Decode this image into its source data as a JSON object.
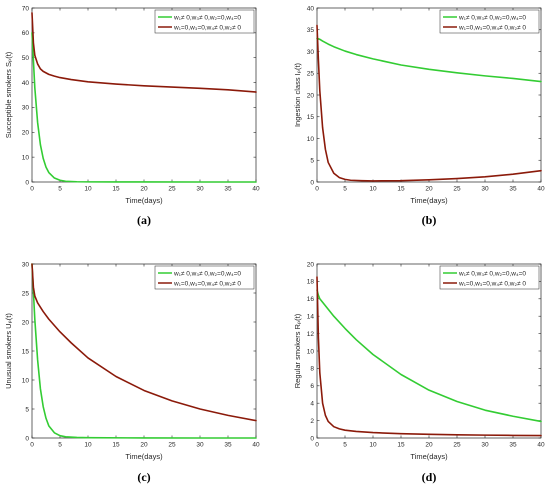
{
  "legend_common": {
    "s1": "w₁≠ 0,w₃≠ 0,w₂=0,w₄=0",
    "s2": "w₁=0,w₃=0,w₄≠ 0,w₂≠ 0"
  },
  "colors": {
    "series1": "#33cc33",
    "series2": "#8b1a0a",
    "axis": "#262626"
  },
  "chart_data": [
    {
      "id": "a",
      "type": "line",
      "caption": "(a)",
      "xlabel": "Time(days)",
      "ylabel": "Succeptible smokers Sₚ(t)",
      "xlim": [
        0,
        40
      ],
      "ylim": [
        0,
        70
      ],
      "xticks": [
        0,
        5,
        10,
        15,
        20,
        25,
        30,
        35,
        40
      ],
      "yticks": [
        0,
        10,
        20,
        30,
        40,
        50,
        60,
        70
      ],
      "legend_position": "top-right",
      "series": [
        {
          "name": "w₁≠ 0,w₃≠ 0,w₂=0,w₄=0",
          "color": "#33cc33",
          "x": [
            0,
            0.5,
            1,
            1.5,
            2,
            2.5,
            3,
            4,
            5,
            6,
            8,
            10,
            15,
            20,
            30,
            40
          ],
          "y": [
            60,
            38,
            24,
            15,
            9.5,
            6,
            3.8,
            1.6,
            0.7,
            0.3,
            0.1,
            0.05,
            0.02,
            0.01,
            0,
            0
          ]
        },
        {
          "name": "w₁=0,w₃=0,w₄≠ 0,w₂≠ 0",
          "color": "#8b1a0a",
          "x": [
            0,
            0.25,
            0.5,
            1,
            1.5,
            2,
            3,
            4,
            5,
            7,
            10,
            15,
            20,
            25,
            30,
            35,
            40
          ],
          "y": [
            68,
            56,
            51,
            47.5,
            45.5,
            44.5,
            43.3,
            42.6,
            42,
            41.2,
            40.3,
            39.4,
            38.7,
            38.2,
            37.7,
            37.1,
            36.2
          ]
        }
      ]
    },
    {
      "id": "b",
      "type": "line",
      "caption": "(b)",
      "xlabel": "Time(days)",
      "ylabel": "Ingestion class Iₚ(t)",
      "xlim": [
        0,
        40
      ],
      "ylim": [
        0,
        40
      ],
      "xticks": [
        0,
        5,
        10,
        15,
        20,
        25,
        30,
        35,
        40
      ],
      "yticks": [
        0,
        5,
        10,
        15,
        20,
        25,
        30,
        35,
        40
      ],
      "legend_position": "top-right",
      "series": [
        {
          "name": "w₁≠ 0,w₃≠ 0,w₂=0,w₄=0",
          "color": "#33cc33",
          "x": [
            0,
            0.5,
            1,
            2,
            3,
            5,
            7,
            10,
            15,
            20,
            25,
            30,
            35,
            40
          ],
          "y": [
            33,
            32.8,
            32.4,
            31.7,
            31.1,
            30.1,
            29.3,
            28.3,
            26.9,
            25.9,
            25.1,
            24.4,
            23.8,
            23.1
          ]
        },
        {
          "name": "w₁=0,w₃=0,w₄≠ 0,w₂≠ 0",
          "color": "#8b1a0a",
          "x": [
            0,
            0.25,
            0.5,
            1,
            1.5,
            2,
            3,
            4,
            5,
            6,
            8,
            10,
            15,
            20,
            25,
            30,
            35,
            40
          ],
          "y": [
            36,
            28,
            21,
            12.5,
            7.5,
            4.5,
            2,
            1,
            0.6,
            0.4,
            0.3,
            0.25,
            0.3,
            0.5,
            0.8,
            1.2,
            1.8,
            2.6
          ]
        }
      ]
    },
    {
      "id": "c",
      "type": "line",
      "caption": "(c)",
      "xlabel": "Time(days)",
      "ylabel": "Unusual smokers Uₚ(t)",
      "xlim": [
        0,
        40
      ],
      "ylim": [
        0,
        30
      ],
      "xticks": [
        0,
        5,
        10,
        15,
        20,
        25,
        30,
        35,
        40
      ],
      "yticks": [
        0,
        5,
        10,
        15,
        20,
        25,
        30
      ],
      "legend_position": "top-right",
      "series": [
        {
          "name": "w₁≠ 0,w₃≠ 0,w₂=0,w₄=0",
          "color": "#33cc33",
          "x": [
            0,
            0.5,
            1,
            1.5,
            2,
            2.5,
            3,
            4,
            5,
            6,
            8,
            10,
            20,
            30,
            40
          ],
          "y": [
            30,
            20.5,
            13.5,
            8.5,
            5.4,
            3.4,
            2.1,
            0.9,
            0.4,
            0.2,
            0.1,
            0.05,
            0.01,
            0,
            0
          ]
        },
        {
          "name": "w₁=0,w₃=0,w₄≠ 0,w₂≠ 0",
          "color": "#8b1a0a",
          "x": [
            0,
            0.25,
            0.5,
            1,
            2,
            3,
            5,
            7,
            10,
            15,
            20,
            25,
            30,
            35,
            40
          ],
          "y": [
            30,
            26,
            24.5,
            23.3,
            21.8,
            20.5,
            18.3,
            16.4,
            13.8,
            10.6,
            8.2,
            6.4,
            5,
            3.9,
            3
          ]
        }
      ]
    },
    {
      "id": "d",
      "type": "line",
      "caption": "(d)",
      "xlabel": "Time(days)",
      "ylabel": "Regular smokers Rₚ(t)",
      "xlim": [
        0,
        40
      ],
      "ylim": [
        0,
        20
      ],
      "xticks": [
        0,
        5,
        10,
        15,
        20,
        25,
        30,
        35,
        40
      ],
      "yticks": [
        0,
        2,
        4,
        6,
        8,
        10,
        12,
        14,
        16,
        18,
        20
      ],
      "legend_position": "top-right",
      "series": [
        {
          "name": "w₁≠ 0,w₃≠ 0,w₂=0,w₄=0",
          "color": "#33cc33",
          "x": [
            0,
            0.25,
            0.5,
            1,
            2,
            3,
            5,
            7,
            10,
            15,
            20,
            25,
            30,
            35,
            40
          ],
          "y": [
            17,
            16.4,
            16,
            15.6,
            14.8,
            14,
            12.6,
            11.3,
            9.6,
            7.3,
            5.5,
            4.2,
            3.2,
            2.5,
            1.9
          ]
        },
        {
          "name": "w₁=0,w₃=0,w₄≠ 0,w₂≠ 0",
          "color": "#8b1a0a",
          "x": [
            0,
            0.25,
            0.5,
            1,
            1.5,
            2,
            3,
            4,
            5,
            7,
            10,
            15,
            20,
            25,
            30,
            35,
            40
          ],
          "y": [
            18.5,
            11.5,
            7.5,
            4,
            2.6,
            1.9,
            1.3,
            1.05,
            0.9,
            0.75,
            0.62,
            0.5,
            0.42,
            0.37,
            0.33,
            0.3,
            0.28
          ]
        }
      ]
    }
  ]
}
